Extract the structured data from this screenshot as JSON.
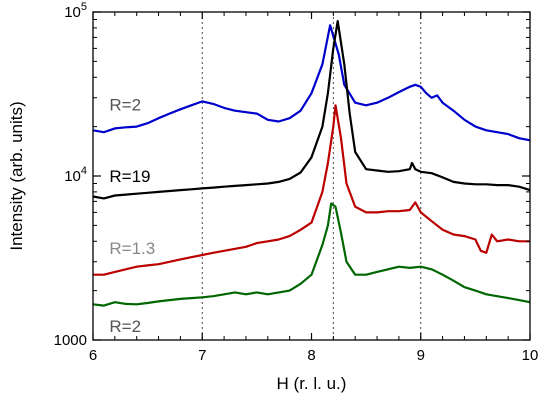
{
  "chart_data": {
    "type": "line",
    "xlabel": "H (r. l. u.)",
    "ylabel": "Intensity (arb. units)",
    "xlim": [
      6,
      10
    ],
    "ylim": [
      1000,
      100000
    ],
    "yscale": "log",
    "x_ticks": [
      6,
      7,
      8,
      9,
      10
    ],
    "x_tick_labels": [
      "6",
      "7",
      "8",
      "9",
      "10"
    ],
    "y_major_ticks": [
      1000,
      10000,
      100000
    ],
    "y_tick_labels": [
      {
        "value": 1000,
        "base": "1000",
        "exp": ""
      },
      {
        "value": 10000,
        "base": "10",
        "exp": "4"
      },
      {
        "value": 100000,
        "base": "10",
        "exp": "5"
      }
    ],
    "vlines": [
      7,
      8.2,
      9
    ],
    "grid": false,
    "legend": "none",
    "series": [
      {
        "label": "R=2",
        "label_color": "#555555",
        "label_pos": {
          "x": 6.15,
          "y": 25000
        },
        "color": "#0000cc",
        "points": [
          [
            6.0,
            19000
          ],
          [
            6.1,
            18500
          ],
          [
            6.2,
            19500
          ],
          [
            6.3,
            19800
          ],
          [
            6.4,
            20000
          ],
          [
            6.5,
            21000
          ],
          [
            6.6,
            22500
          ],
          [
            6.7,
            24000
          ],
          [
            6.8,
            25500
          ],
          [
            6.9,
            27000
          ],
          [
            7.0,
            28500
          ],
          [
            7.1,
            27500
          ],
          [
            7.2,
            26000
          ],
          [
            7.3,
            25000
          ],
          [
            7.4,
            24500
          ],
          [
            7.5,
            24000
          ],
          [
            7.6,
            22000
          ],
          [
            7.7,
            21500
          ],
          [
            7.8,
            22500
          ],
          [
            7.9,
            25000
          ],
          [
            8.0,
            32000
          ],
          [
            8.1,
            48000
          ],
          [
            8.17,
            83000
          ],
          [
            8.25,
            55000
          ],
          [
            8.3,
            36000
          ],
          [
            8.4,
            28000
          ],
          [
            8.5,
            27000
          ],
          [
            8.6,
            28000
          ],
          [
            8.7,
            30000
          ],
          [
            8.8,
            32500
          ],
          [
            8.9,
            35000
          ],
          [
            8.95,
            36000
          ],
          [
            9.0,
            35000
          ],
          [
            9.05,
            32000
          ],
          [
            9.1,
            30000
          ],
          [
            9.15,
            31000
          ],
          [
            9.2,
            28000
          ],
          [
            9.3,
            25000
          ],
          [
            9.4,
            22000
          ],
          [
            9.5,
            20000
          ],
          [
            9.6,
            19000
          ],
          [
            9.7,
            18500
          ],
          [
            9.8,
            18000
          ],
          [
            9.9,
            17000
          ],
          [
            10.0,
            16500
          ]
        ]
      },
      {
        "label": "R=19",
        "label_color": "#000000",
        "label_pos": {
          "x": 6.15,
          "y": 9200
        },
        "color": "#000000",
        "points": [
          [
            6.0,
            7500
          ],
          [
            6.1,
            7300
          ],
          [
            6.2,
            7600
          ],
          [
            6.3,
            7700
          ],
          [
            6.4,
            7800
          ],
          [
            6.5,
            7900
          ],
          [
            6.6,
            8000
          ],
          [
            6.7,
            8100
          ],
          [
            6.8,
            8200
          ],
          [
            6.9,
            8300
          ],
          [
            7.0,
            8400
          ],
          [
            7.1,
            8500
          ],
          [
            7.2,
            8600
          ],
          [
            7.3,
            8700
          ],
          [
            7.4,
            8800
          ],
          [
            7.5,
            8900
          ],
          [
            7.6,
            9000
          ],
          [
            7.7,
            9200
          ],
          [
            7.8,
            9600
          ],
          [
            7.9,
            10500
          ],
          [
            8.0,
            13000
          ],
          [
            8.1,
            20000
          ],
          [
            8.15,
            32000
          ],
          [
            8.2,
            60000
          ],
          [
            8.24,
            88000
          ],
          [
            8.3,
            48000
          ],
          [
            8.35,
            24000
          ],
          [
            8.4,
            14000
          ],
          [
            8.5,
            11000
          ],
          [
            8.6,
            10800
          ],
          [
            8.7,
            10600
          ],
          [
            8.8,
            10700
          ],
          [
            8.9,
            11000
          ],
          [
            8.92,
            12000
          ],
          [
            8.95,
            11000
          ],
          [
            9.0,
            10600
          ],
          [
            9.1,
            10400
          ],
          [
            9.2,
            9800
          ],
          [
            9.3,
            9200
          ],
          [
            9.4,
            9000
          ],
          [
            9.5,
            8900
          ],
          [
            9.6,
            8900
          ],
          [
            9.7,
            8800
          ],
          [
            9.8,
            8800
          ],
          [
            9.9,
            8600
          ],
          [
            10.0,
            8200
          ]
        ]
      },
      {
        "label": "R=1.3",
        "label_color": "#888888",
        "label_pos": {
          "x": 6.15,
          "y": 3350
        },
        "color": "#bb0000",
        "points": [
          [
            6.0,
            2500
          ],
          [
            6.1,
            2500
          ],
          [
            6.2,
            2600
          ],
          [
            6.3,
            2700
          ],
          [
            6.4,
            2800
          ],
          [
            6.5,
            2850
          ],
          [
            6.6,
            2900
          ],
          [
            6.7,
            3000
          ],
          [
            6.8,
            3100
          ],
          [
            6.9,
            3200
          ],
          [
            7.0,
            3300
          ],
          [
            7.1,
            3400
          ],
          [
            7.2,
            3500
          ],
          [
            7.3,
            3600
          ],
          [
            7.4,
            3700
          ],
          [
            7.5,
            3900
          ],
          [
            7.6,
            4000
          ],
          [
            7.7,
            4100
          ],
          [
            7.8,
            4300
          ],
          [
            7.9,
            4700
          ],
          [
            8.0,
            5200
          ],
          [
            8.1,
            8000
          ],
          [
            8.15,
            12000
          ],
          [
            8.2,
            20000
          ],
          [
            8.22,
            27000
          ],
          [
            8.27,
            17000
          ],
          [
            8.32,
            9000
          ],
          [
            8.4,
            6500
          ],
          [
            8.5,
            6000
          ],
          [
            8.6,
            6000
          ],
          [
            8.7,
            6100
          ],
          [
            8.8,
            6100
          ],
          [
            8.9,
            6200
          ],
          [
            8.95,
            6900
          ],
          [
            9.0,
            6000
          ],
          [
            9.1,
            5300
          ],
          [
            9.2,
            4700
          ],
          [
            9.3,
            4400
          ],
          [
            9.4,
            4300
          ],
          [
            9.5,
            4100
          ],
          [
            9.55,
            3500
          ],
          [
            9.6,
            3400
          ],
          [
            9.65,
            4400
          ],
          [
            9.7,
            4000
          ],
          [
            9.8,
            4100
          ],
          [
            9.9,
            4000
          ],
          [
            10.0,
            4000
          ]
        ]
      },
      {
        "label": "R=2",
        "label_color": "#555555",
        "label_pos": {
          "x": 6.15,
          "y": 1120
        },
        "color": "#006600",
        "points": [
          [
            6.0,
            1650
          ],
          [
            6.1,
            1620
          ],
          [
            6.2,
            1700
          ],
          [
            6.3,
            1660
          ],
          [
            6.4,
            1650
          ],
          [
            6.5,
            1680
          ],
          [
            6.6,
            1720
          ],
          [
            6.7,
            1750
          ],
          [
            6.8,
            1780
          ],
          [
            6.9,
            1800
          ],
          [
            7.0,
            1820
          ],
          [
            7.1,
            1850
          ],
          [
            7.2,
            1900
          ],
          [
            7.3,
            1950
          ],
          [
            7.4,
            1900
          ],
          [
            7.5,
            1950
          ],
          [
            7.6,
            1900
          ],
          [
            7.7,
            1950
          ],
          [
            7.8,
            2000
          ],
          [
            7.9,
            2200
          ],
          [
            8.0,
            2500
          ],
          [
            8.1,
            3800
          ],
          [
            8.15,
            5000
          ],
          [
            8.18,
            6800
          ],
          [
            8.22,
            6500
          ],
          [
            8.27,
            4500
          ],
          [
            8.32,
            3000
          ],
          [
            8.4,
            2500
          ],
          [
            8.5,
            2500
          ],
          [
            8.6,
            2600
          ],
          [
            8.7,
            2700
          ],
          [
            8.8,
            2800
          ],
          [
            8.9,
            2750
          ],
          [
            9.0,
            2800
          ],
          [
            9.1,
            2700
          ],
          [
            9.2,
            2500
          ],
          [
            9.3,
            2300
          ],
          [
            9.4,
            2100
          ],
          [
            9.5,
            2000
          ],
          [
            9.6,
            1900
          ],
          [
            9.7,
            1850
          ],
          [
            9.8,
            1800
          ],
          [
            9.9,
            1750
          ],
          [
            10.0,
            1700
          ]
        ]
      }
    ]
  }
}
